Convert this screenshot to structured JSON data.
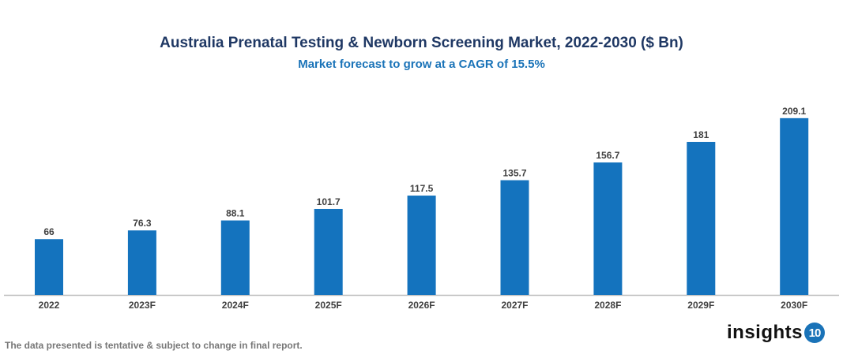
{
  "chart_data": {
    "type": "bar",
    "title": "Australia Prenatal Testing & Newborn Screening Market, 2022-2030 ($ Bn)",
    "subtitle": "Market forecast to grow at a CAGR of 15.5%",
    "categories": [
      "2022",
      "2023F",
      "2024F",
      "2025F",
      "2026F",
      "2027F",
      "2028F",
      "2029F",
      "2030F"
    ],
    "values": [
      66,
      76.3,
      88.1,
      101.7,
      117.5,
      135.7,
      156.7,
      181,
      209.1
    ],
    "data_labels": [
      "66",
      "76.3",
      "88.1",
      "101.7",
      "117.5",
      "135.7",
      "156.7",
      "181",
      "209.1"
    ],
    "xlabel": "",
    "ylabel": "",
    "ylim": [
      0,
      250
    ],
    "grid": false,
    "legend": "none",
    "bar_color": "#1473be"
  },
  "footnote": "The data presented is tentative & subject to change in final report.",
  "logo": {
    "text": "insights",
    "badge": "10"
  }
}
